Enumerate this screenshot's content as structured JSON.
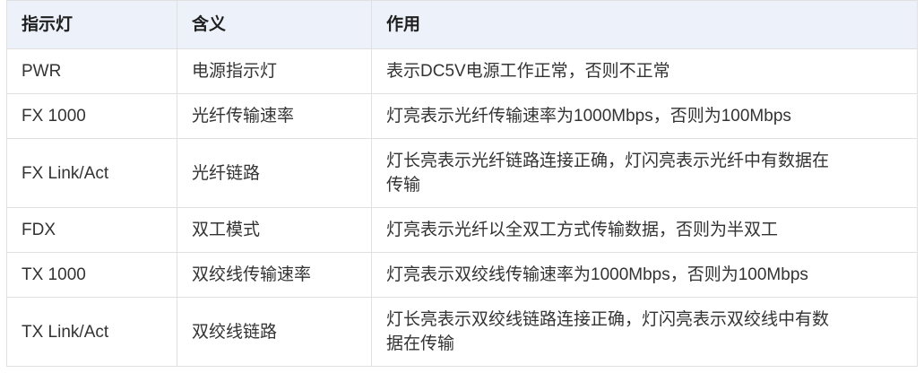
{
  "table": {
    "headers": [
      "指示灯",
      "含义",
      "作用"
    ],
    "rows": [
      [
        "PWR",
        "电源指示灯",
        "表示DC5V电源工作正常，否则不正常"
      ],
      [
        "FX 1000",
        "光纤传输速率",
        "灯亮表示光纤传输速率为1000Mbps，否则为100Mbps"
      ],
      [
        "FX Link/Act",
        "光纤链路",
        "灯长亮表示光纤链路连接正确，灯闪亮表示光纤中有数据在传输"
      ],
      [
        "FDX",
        "双工模式",
        "灯亮表示光纤以全双工方式传输数据，否则为半双工"
      ],
      [
        "TX 1000",
        "双绞线传输速率",
        "灯亮表示双绞线传输速率为1000Mbps，否则为100Mbps"
      ],
      [
        "TX Link/Act",
        "双绞线链路",
        "灯长亮表示双绞线链路连接正确，灯闪亮表示双绞线中有数据在传输"
      ]
    ]
  },
  "colors": {
    "header_bg": "#edf2fa",
    "border": "#e0e0e0",
    "header_text": "#1f1f1f",
    "body_text": "#333333"
  }
}
